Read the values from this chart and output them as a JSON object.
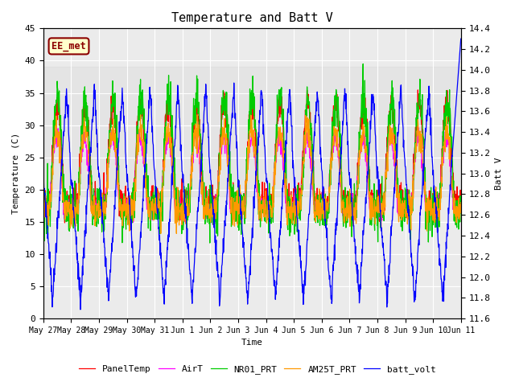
{
  "title": "Temperature and Batt V",
  "xlabel": "Time",
  "ylabel_left": "Temperature (C)",
  "ylabel_right": "Batt V",
  "annotation": "EE_met",
  "ylim_left": [
    0,
    45
  ],
  "ylim_right": [
    11.6,
    14.4
  ],
  "yticks_left": [
    0,
    5,
    10,
    15,
    20,
    25,
    30,
    35,
    40,
    45
  ],
  "yticks_right": [
    11.6,
    11.8,
    12.0,
    12.2,
    12.4,
    12.6,
    12.8,
    13.0,
    13.2,
    13.4,
    13.6,
    13.8,
    14.0,
    14.2,
    14.4
  ],
  "xtick_labels": [
    "May 27",
    "May 28",
    "May 29",
    "May 30",
    "May 31",
    "Jun 1",
    "Jun 2",
    "Jun 3",
    "Jun 4",
    "Jun 5",
    "Jun 6",
    "Jun 7",
    "Jun 8",
    "Jun 9",
    "Jun 10",
    "Jun 11"
  ],
  "legend_labels": [
    "PanelTemp",
    "AirT",
    "NR01_PRT",
    "AM25T_PRT",
    "batt_volt"
  ],
  "legend_colors": [
    "#ff0000",
    "#ff00ff",
    "#00cc00",
    "#ff9900",
    "#0000ff"
  ],
  "background_color": "#ffffff",
  "plot_bg_color": "#ebebeb",
  "grid_color": "#ffffff",
  "font_family": "monospace",
  "title_fontsize": 11,
  "axis_fontsize": 8,
  "legend_fontsize": 8,
  "n_days": 15,
  "batt_ylim_low": 11.6,
  "batt_ylim_high": 14.4,
  "temp_ylim_low": 0,
  "temp_ylim_high": 45,
  "shaded_band_low": 19,
  "shaded_band_high": 39
}
